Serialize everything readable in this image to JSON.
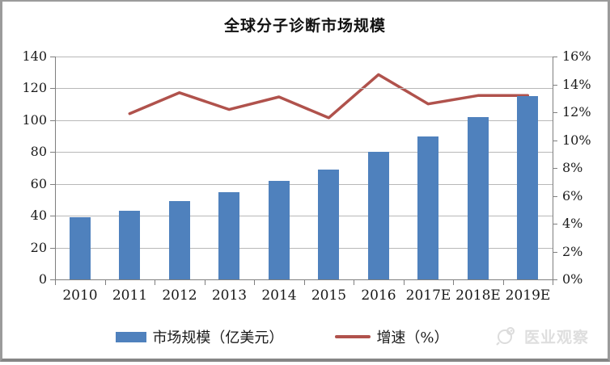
{
  "chart_data": {
    "type": "combo",
    "title": "全球分子诊断市场规模",
    "categories": [
      "2010",
      "2011",
      "2012",
      "2013",
      "2014",
      "2015",
      "2016",
      "2017E",
      "2018E",
      "2019E"
    ],
    "series": [
      {
        "name": "市场规模（亿美元）",
        "type": "bar",
        "axis": "left",
        "color": "#4f81bd",
        "values": [
          39,
          43,
          49,
          55,
          62,
          69,
          80,
          90,
          102,
          115
        ]
      },
      {
        "name": "增速（%）",
        "type": "line",
        "axis": "right",
        "color": "#b0524c",
        "values": [
          null,
          11.9,
          13.4,
          12.2,
          13.1,
          11.6,
          14.7,
          12.6,
          13.2,
          13.2
        ]
      }
    ],
    "left_axis": {
      "min": 0,
      "max": 140,
      "step": 20,
      "tick_labels": [
        "140",
        "120",
        "100",
        "80",
        "60",
        "40",
        "20",
        "0"
      ]
    },
    "right_axis": {
      "min": 0,
      "max": 16,
      "step": 2,
      "tick_labels": [
        "16%",
        "14%",
        "12%",
        "10%",
        "8%",
        "6%",
        "4%",
        "2%",
        "0%"
      ]
    },
    "grid": true,
    "legend_position": "bottom"
  },
  "colors": {
    "bar": "#4f81bd",
    "line": "#b0524c",
    "gridline": "#b8b8b8",
    "axis": "#7f7f7f",
    "frame": "#9b9b9b",
    "watermark": "#dedede"
  },
  "watermark": {
    "text": "医业观察"
  }
}
